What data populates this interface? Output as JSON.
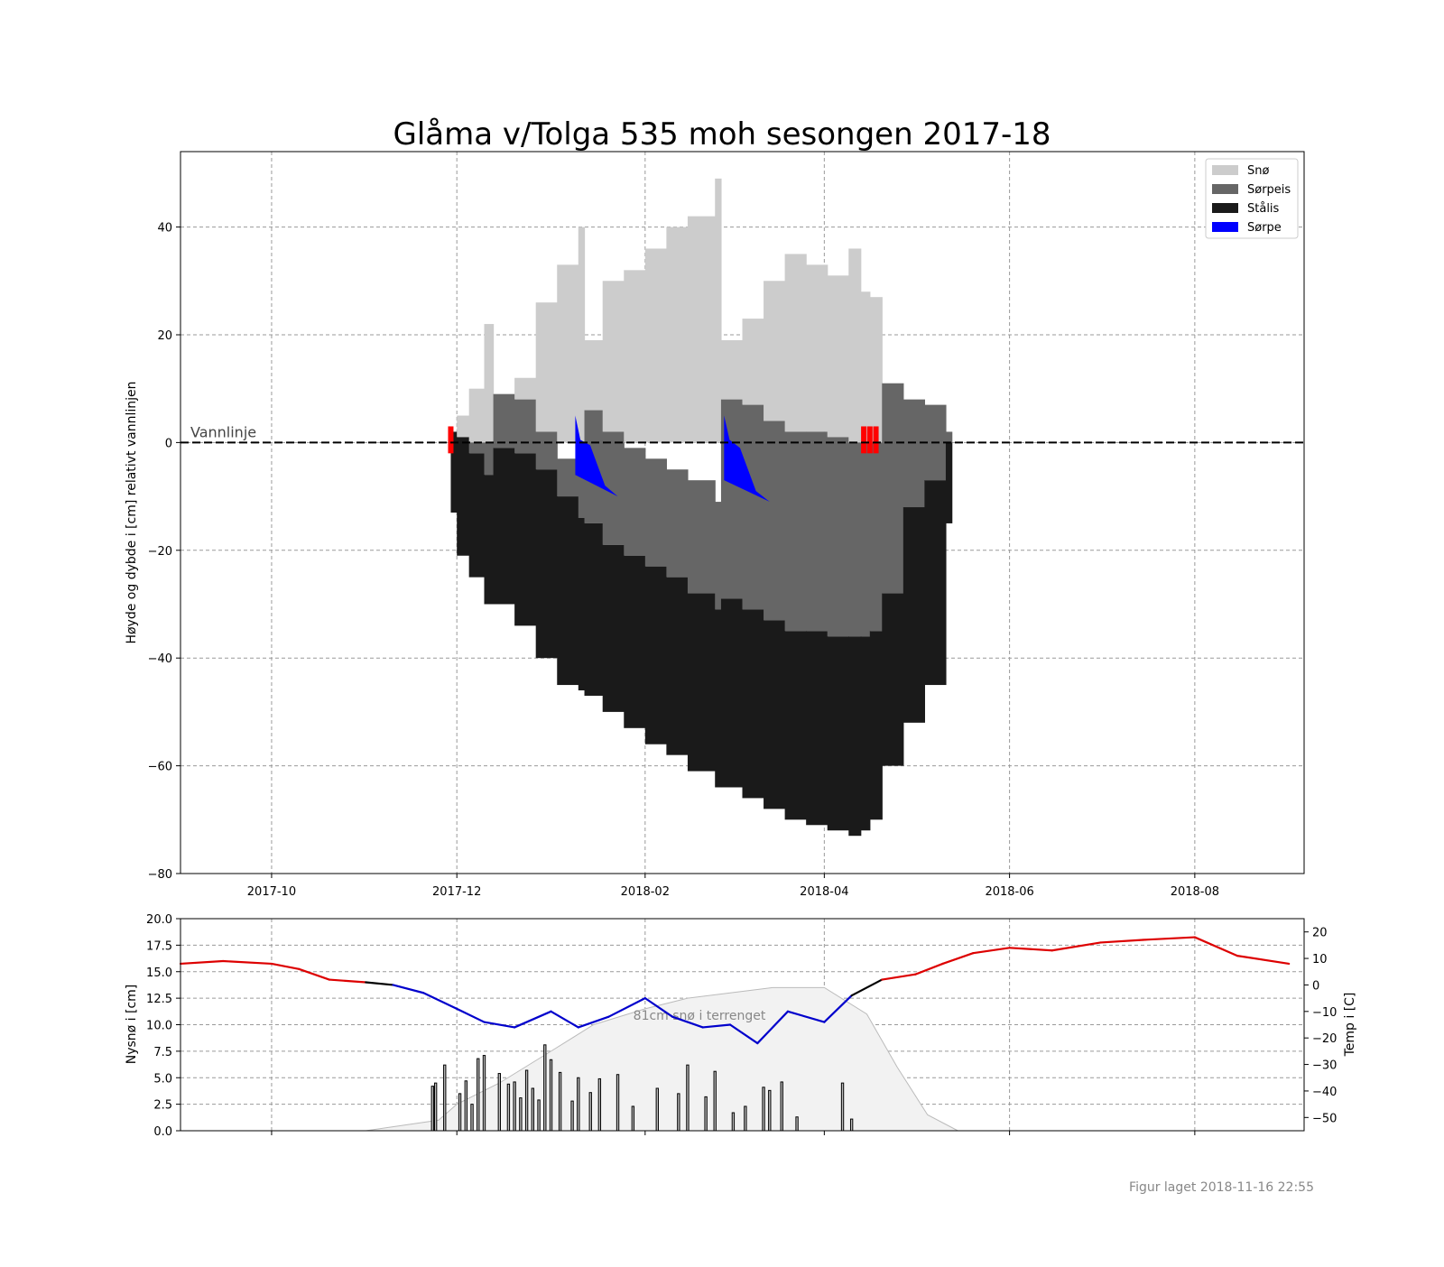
{
  "title": "Glåma v/Tolga 535 moh sesongen 2017-18",
  "footer": "Figur laget 2018-11-16 22:55",
  "colors": {
    "snow": "#cccccc",
    "slush_ice": "#666666",
    "black_ice": "#1a1a1a",
    "slush": "#0000ff",
    "temp_warm": "#dd0000",
    "temp_cold": "#0000cc",
    "temp_neutral": "#000000",
    "snow_depth_area": "#f2f2f2",
    "marker": "#ff0000"
  },
  "chart_data": [
    {
      "type": "area",
      "name": "ice-profile",
      "ylabel": "Høyde og dybde i [cm] relativt vannlinjen",
      "xlabel": "",
      "xlim": [
        "2017-09-01",
        "2018-09-06"
      ],
      "ylim": [
        -80,
        54
      ],
      "grid": true,
      "legend_position": "top-right",
      "x_ticks": [
        "2017-10",
        "2017-12",
        "2018-02",
        "2018-04",
        "2018-06",
        "2018-08"
      ],
      "y_ticks": [
        40,
        20,
        0,
        -20,
        -40,
        -60,
        -80
      ],
      "y_tick_labels": [
        "40",
        "20",
        "0",
        "−20",
        "−40",
        "−60",
        "−80"
      ],
      "waterline_label": "Vannlinje",
      "legend": [
        "Snø",
        "Sørpeis",
        "Stålis",
        "Sørpe"
      ],
      "x": [
        "2017-11-29",
        "2017-12-01",
        "2017-12-05",
        "2017-12-10",
        "2017-12-13",
        "2017-12-20",
        "2017-12-27",
        "2018-01-03",
        "2018-01-10",
        "2018-01-12",
        "2018-01-18",
        "2018-01-25",
        "2018-02-01",
        "2018-02-08",
        "2018-02-15",
        "2018-02-24",
        "2018-02-26",
        "2018-03-05",
        "2018-03-12",
        "2018-03-19",
        "2018-03-26",
        "2018-04-02",
        "2018-04-09",
        "2018-04-13",
        "2018-04-16",
        "2018-04-20",
        "2018-04-27",
        "2018-05-04",
        "2018-05-11",
        "2018-05-13"
      ],
      "series": [
        {
          "name": "Snø",
          "top": [
            2,
            5,
            10,
            22,
            4,
            12,
            26,
            33,
            40,
            19,
            30,
            32,
            36,
            40,
            42,
            49,
            19,
            23,
            30,
            35,
            33,
            31,
            36,
            28,
            27,
            2,
            0,
            0,
            0,
            0
          ]
        },
        {
          "name": "Sørpeis",
          "top": [
            0,
            0,
            0,
            0,
            9,
            8,
            2,
            -3,
            -5,
            6,
            2,
            -1,
            -3,
            -5,
            -7,
            -11,
            8,
            7,
            4,
            2,
            2,
            1,
            0,
            0,
            0,
            11,
            8,
            7,
            2,
            0
          ]
        },
        {
          "name": "Stålis",
          "top": [
            2,
            1,
            -2,
            -6,
            -1,
            -2,
            -5,
            -10,
            -14,
            -15,
            -19,
            -21,
            -23,
            -25,
            -28,
            -31,
            -29,
            -31,
            -33,
            -35,
            -35,
            -36,
            -36,
            -36,
            -35,
            -28,
            -12,
            -7,
            0,
            0
          ]
        },
        {
          "name": "Stålis_bottom",
          "bottom": [
            -13,
            -21,
            -25,
            -30,
            -30,
            -34,
            -40,
            -45,
            -46,
            -47,
            -50,
            -53,
            -56,
            -58,
            -61,
            -64,
            -64,
            -66,
            -68,
            -70,
            -71,
            -72,
            -73,
            -72,
            -70,
            -60,
            -52,
            -45,
            -15,
            -5
          ]
        }
      ],
      "slush_events": [
        {
          "start": "2018-01-09",
          "end": "2018-01-23",
          "top": 5,
          "bottom": -10
        },
        {
          "start": "2018-02-27",
          "end": "2018-03-14",
          "top": 5,
          "bottom": -11
        }
      ],
      "markers": [
        "2017-11-29",
        "2018-04-14",
        "2018-04-16",
        "2018-04-18"
      ]
    },
    {
      "type": "bar",
      "name": "weather",
      "ylabel": "Nysnø i [cm]",
      "y2label": "Temp i [C]",
      "ylim": [
        0,
        20
      ],
      "y2lim": [
        -55,
        25
      ],
      "y_ticks": [
        "0.0",
        "2.5",
        "5.0",
        "7.5",
        "10.0",
        "12.5",
        "15.0",
        "17.5",
        "20.0"
      ],
      "y2_ticks": [
        20,
        10,
        0,
        -10,
        -20,
        -30,
        -40,
        -50
      ],
      "y2_tick_labels": [
        "20",
        "10",
        "0",
        "−10",
        "−20",
        "−30",
        "−40",
        "−50"
      ],
      "annotation": "81cm snø i terrenget",
      "grid": true,
      "new_snow": {
        "x": [
          "2017-11-23",
          "2017-11-24",
          "2017-11-27",
          "2017-12-02",
          "2017-12-04",
          "2017-12-06",
          "2017-12-08",
          "2017-12-10",
          "2017-12-15",
          "2017-12-18",
          "2017-12-20",
          "2017-12-22",
          "2017-12-24",
          "2017-12-26",
          "2017-12-28",
          "2017-12-30",
          "2018-01-01",
          "2018-01-04",
          "2018-01-08",
          "2018-01-10",
          "2018-01-14",
          "2018-01-17",
          "2018-01-23",
          "2018-01-28",
          "2018-02-05",
          "2018-02-12",
          "2018-02-15",
          "2018-02-21",
          "2018-02-24",
          "2018-03-02",
          "2018-03-06",
          "2018-03-12",
          "2018-03-14",
          "2018-03-18",
          "2018-03-23",
          "2018-04-07",
          "2018-04-10"
        ],
        "values": [
          4.2,
          4.5,
          6.2,
          3.5,
          4.7,
          2.5,
          6.8,
          7.1,
          5.4,
          4.4,
          4.6,
          3.1,
          5.7,
          4.0,
          2.9,
          8.1,
          6.7,
          5.5,
          2.8,
          5.0,
          3.6,
          4.9,
          5.3,
          2.3,
          4.0,
          3.5,
          6.2,
          3.2,
          5.6,
          1.7,
          2.3,
          4.1,
          3.8,
          4.6,
          1.3,
          4.5,
          1.1
        ]
      },
      "snow_depth_area": {
        "x": [
          "2017-11-01",
          "2017-11-25",
          "2017-12-01",
          "2017-12-15",
          "2018-01-01",
          "2018-01-15",
          "2018-02-01",
          "2018-02-15",
          "2018-03-01",
          "2018-03-15",
          "2018-04-01",
          "2018-04-15",
          "2018-04-25",
          "2018-05-05",
          "2018-05-15"
        ],
        "values": [
          0.0,
          1.0,
          2.5,
          4.5,
          7.5,
          10.0,
          11.5,
          12.5,
          13.0,
          13.5,
          13.5,
          11.0,
          6.0,
          1.5,
          0.0
        ]
      },
      "temperature": {
        "x": [
          "2017-09-01",
          "2017-09-15",
          "2017-10-01",
          "2017-10-10",
          "2017-10-20",
          "2017-11-01",
          "2017-11-10",
          "2017-11-20",
          "2017-12-01",
          "2017-12-10",
          "2017-12-20",
          "2018-01-01",
          "2018-01-10",
          "2018-01-20",
          "2018-02-01",
          "2018-02-10",
          "2018-02-20",
          "2018-03-01",
          "2018-03-10",
          "2018-03-20",
          "2018-04-01",
          "2018-04-10",
          "2018-04-20",
          "2018-05-01",
          "2018-05-10",
          "2018-05-20",
          "2018-06-01",
          "2018-06-15",
          "2018-07-01",
          "2018-07-15",
          "2018-08-01",
          "2018-08-15",
          "2018-09-01"
        ],
        "values": [
          8,
          9,
          8,
          6,
          2,
          1,
          0,
          -3,
          -9,
          -14,
          -16,
          -10,
          -16,
          -12,
          -5,
          -12,
          -16,
          -15,
          -22,
          -10,
          -14,
          -4,
          2,
          4,
          8,
          12,
          14,
          13,
          16,
          17,
          18,
          11,
          8
        ]
      }
    }
  ]
}
